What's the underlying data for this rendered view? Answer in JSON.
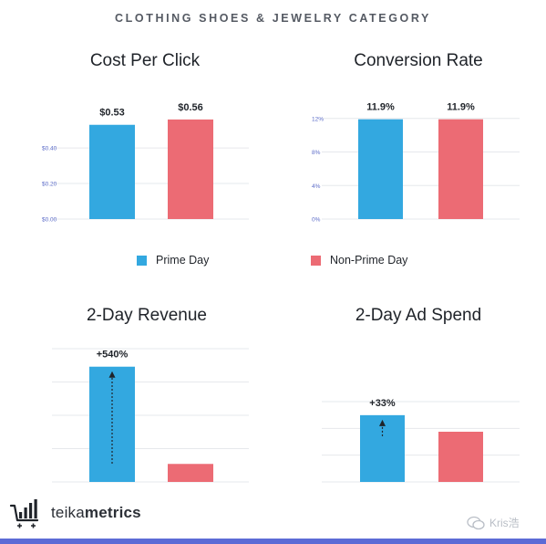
{
  "page": {
    "category_title": "CLOTHING SHOES & JEWELRY CATEGORY",
    "accent_color": "#5c6bd6"
  },
  "legend": {
    "prime": {
      "label": "Prime Day",
      "color": "#33a8e0"
    },
    "nonprime": {
      "label": "Non-Prime Day",
      "color": "#ec6b74"
    }
  },
  "brand": {
    "name_light": "teika",
    "name_bold": "metrics",
    "icon": "cart-chart-icon"
  },
  "watermark": {
    "text": "Kris浩",
    "icon": "wechat-icon"
  },
  "chart_data": [
    {
      "type": "bar",
      "title": "Cost Per Click",
      "categories": [
        "Prime Day",
        "Non-Prime Day"
      ],
      "values": [
        0.53,
        0.56
      ],
      "value_labels": [
        "$0.53",
        "$0.56"
      ],
      "yticks": [
        {
          "value": 0.0,
          "label": "$0.00"
        },
        {
          "value": 0.2,
          "label": "$0.20"
        },
        {
          "value": 0.4,
          "label": "$0.40"
        }
      ],
      "ylim": [
        0,
        0.58
      ],
      "grid": true
    },
    {
      "type": "bar",
      "title": "Conversion Rate",
      "categories": [
        "Prime Day",
        "Non-Prime Day"
      ],
      "values": [
        11.9,
        11.9
      ],
      "value_labels": [
        "11.9%",
        "11.9%"
      ],
      "yticks": [
        {
          "value": 0,
          "label": "0%"
        },
        {
          "value": 4,
          "label": "4%"
        },
        {
          "value": 8,
          "label": "8%"
        },
        {
          "value": 12,
          "label": "12%"
        }
      ],
      "ylim": [
        0,
        12.3
      ],
      "grid": true
    },
    {
      "type": "bar",
      "title": "2-Day Revenue",
      "categories": [
        "Prime Day",
        "Non-Prime Day"
      ],
      "values": [
        6.4,
        1
      ],
      "value_labels": [
        "+540%",
        ""
      ],
      "annotation": "+540%",
      "yticks": [],
      "ylim": [
        0,
        7.4
      ],
      "grid": true
    },
    {
      "type": "bar",
      "title": "2-Day Ad Spend",
      "categories": [
        "Prime Day",
        "Non-Prime Day"
      ],
      "values": [
        1.33,
        1
      ],
      "value_labels": [
        "+33%",
        ""
      ],
      "annotation": "+33%",
      "yticks": [],
      "ylim": [
        0,
        1.6
      ],
      "grid": true
    }
  ]
}
